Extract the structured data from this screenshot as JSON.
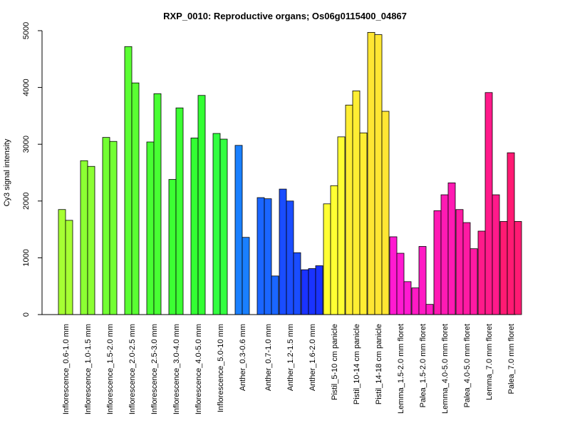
{
  "chart_data": {
    "type": "bar",
    "title": "RXP_0010: Reproductive organs; Os06g0115400_04867",
    "xlabel": "",
    "ylabel": "Cy3 signal intensity",
    "ylim": [
      0,
      5000
    ],
    "yticks": [
      "0",
      "1000",
      "2000",
      "3000",
      "4000",
      "5000"
    ],
    "grid": false,
    "groups": [
      {
        "label": "Inflorescence_0.6-1.0 mm",
        "color": "#a6ff33",
        "values": [
          1850,
          1660
        ]
      },
      {
        "label": "Inflorescence_1.0-1.5 mm",
        "color": "#8cff33",
        "values": [
          2710,
          2610
        ]
      },
      {
        "label": "Inflorescence_1.5-2.0 mm",
        "color": "#73ff33",
        "values": [
          3120,
          3050
        ]
      },
      {
        "label": "Inflorescence_2.0-2.5 mm",
        "color": "#5aff33",
        "values": [
          4720,
          4080
        ]
      },
      {
        "label": "Inflorescence_2.5-3.0 mm",
        "color": "#48ff33",
        "values": [
          3040,
          3890
        ]
      },
      {
        "label": "Inflorescence_3.0-4.0 mm",
        "color": "#3cff33",
        "values": [
          2380,
          3640
        ]
      },
      {
        "label": "Inflorescence_4.0-5.0 mm",
        "color": "#33ff33",
        "values": [
          3110,
          3860
        ]
      },
      {
        "label": "Inflorescence_5.0-10 mm",
        "color": "#33ff40",
        "values": [
          3190,
          3090
        ]
      },
      {
        "label": "Anther_0.3-0.6 mm",
        "color": "#1a80ff",
        "values": [
          2980,
          1360
        ]
      },
      {
        "label": "Anther_0.7-1.0 mm",
        "color": "#1a66ff",
        "values": [
          2060,
          2040,
          680
        ]
      },
      {
        "label": "Anther_1.2-1.5 mm",
        "color": "#1a4dff",
        "values": [
          2210,
          2000,
          1090
        ]
      },
      {
        "label": "Anther_1.6-2.0 mm",
        "color": "#1a33ff",
        "values": [
          790,
          810,
          860
        ]
      },
      {
        "label": "Pistil_5-10 cm panicle",
        "color": "#ffff33",
        "values": [
          1950,
          2270,
          3130
        ]
      },
      {
        "label": "Pistil_10-14 cm panicle",
        "color": "#ffee33",
        "values": [
          3690,
          3940,
          3200
        ]
      },
      {
        "label": "Pistil_14-18 cm panicle",
        "color": "#ffe633",
        "values": [
          4970,
          4930,
          3580
        ]
      },
      {
        "label": "Lemma_1.5-2.0 mm floret",
        "color": "#ff1ad1",
        "values": [
          1370,
          1080,
          580
        ]
      },
      {
        "label": "Palea_1.5-2.0 mm floret",
        "color": "#ff1ac4",
        "values": [
          470,
          1200,
          180
        ]
      },
      {
        "label": "Lemma_4.0-5.0 mm floret",
        "color": "#ff1ab3",
        "values": [
          1830,
          2110,
          2320
        ]
      },
      {
        "label": "Palea_4.0-5.0 mm floret",
        "color": "#ff1aa3",
        "values": [
          1850,
          1620,
          1160
        ]
      },
      {
        "label": "Lemma_7.0 mm floret",
        "color": "#ff1a8a",
        "values": [
          1470,
          3910,
          2110
        ]
      },
      {
        "label": "Palea_7.0 mm floret",
        "color": "#ff1a73",
        "values": [
          1640,
          2850,
          1640
        ]
      }
    ]
  }
}
